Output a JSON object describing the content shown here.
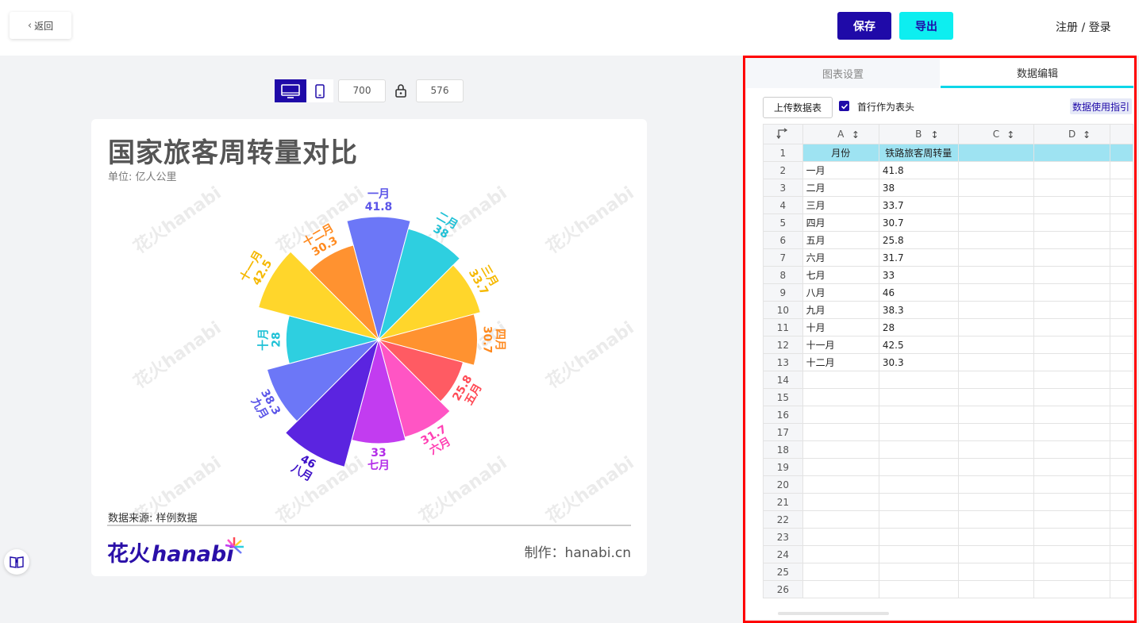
{
  "header": {
    "back_label": "返回",
    "save_label": "保存",
    "export_label": "导出",
    "login_label": "注册 / 登录"
  },
  "canvas": {
    "width_value": "700",
    "height_value": "576"
  },
  "chart": {
    "title": "国家旅客周转量对比",
    "subtitle": "单位: 亿人公里",
    "source": "数据来源: 样例数据",
    "made_by": "制作：hanabi.cn",
    "brand_cn": "花火",
    "brand_en": "hanabi"
  },
  "chart_data": {
    "type": "nightingale-rose",
    "title": "国家旅客周转量对比",
    "subtitle": "单位: 亿人公里",
    "categories": [
      "一月",
      "二月",
      "三月",
      "四月",
      "五月",
      "六月",
      "七月",
      "八月",
      "九月",
      "十月",
      "十一月",
      "十二月"
    ],
    "values": [
      41.8,
      38,
      33.7,
      30.7,
      25.8,
      31.7,
      33,
      46,
      38.3,
      28,
      42.5,
      30.3
    ],
    "colors": [
      "#6c77f7",
      "#2ecfe0",
      "#ffd62b",
      "#ff9230",
      "#ff5b63",
      "#ff55c4",
      "#c23cf0",
      "#5b24e0",
      "#6c77f7",
      "#2ecfe0",
      "#ffd62b",
      "#ff9230"
    ],
    "label_colors": [
      "#5b55e8",
      "#1fc1d6",
      "#f5b800",
      "#ff8a1f",
      "#ff4a55",
      "#ff3fb3",
      "#b32ce8",
      "#3d10c8",
      "#5b55e8",
      "#1fc1d6",
      "#f5b800",
      "#ff8a1f"
    ],
    "legend": "none"
  },
  "panel": {
    "tab_settings": "图表设置",
    "tab_data": "数据编辑",
    "upload_label": "上传数据表",
    "first_row_header_label": "首行作为表头",
    "first_row_header_checked": true,
    "guide_label": "数据使用指引"
  },
  "sheet": {
    "columns": [
      "A",
      "B",
      "C",
      "D"
    ],
    "rows": [
      [
        "月份",
        "铁路旅客周转量"
      ],
      [
        "一月",
        "41.8"
      ],
      [
        "二月",
        "38"
      ],
      [
        "三月",
        "33.7"
      ],
      [
        "四月",
        "30.7"
      ],
      [
        "五月",
        "25.8"
      ],
      [
        "六月",
        "31.7"
      ],
      [
        "七月",
        "33"
      ],
      [
        "八月",
        "46"
      ],
      [
        "九月",
        "38.3"
      ],
      [
        "十月",
        "28"
      ],
      [
        "十一月",
        "42.5"
      ],
      [
        "十二月",
        "30.3"
      ]
    ],
    "total_rows": 26
  }
}
